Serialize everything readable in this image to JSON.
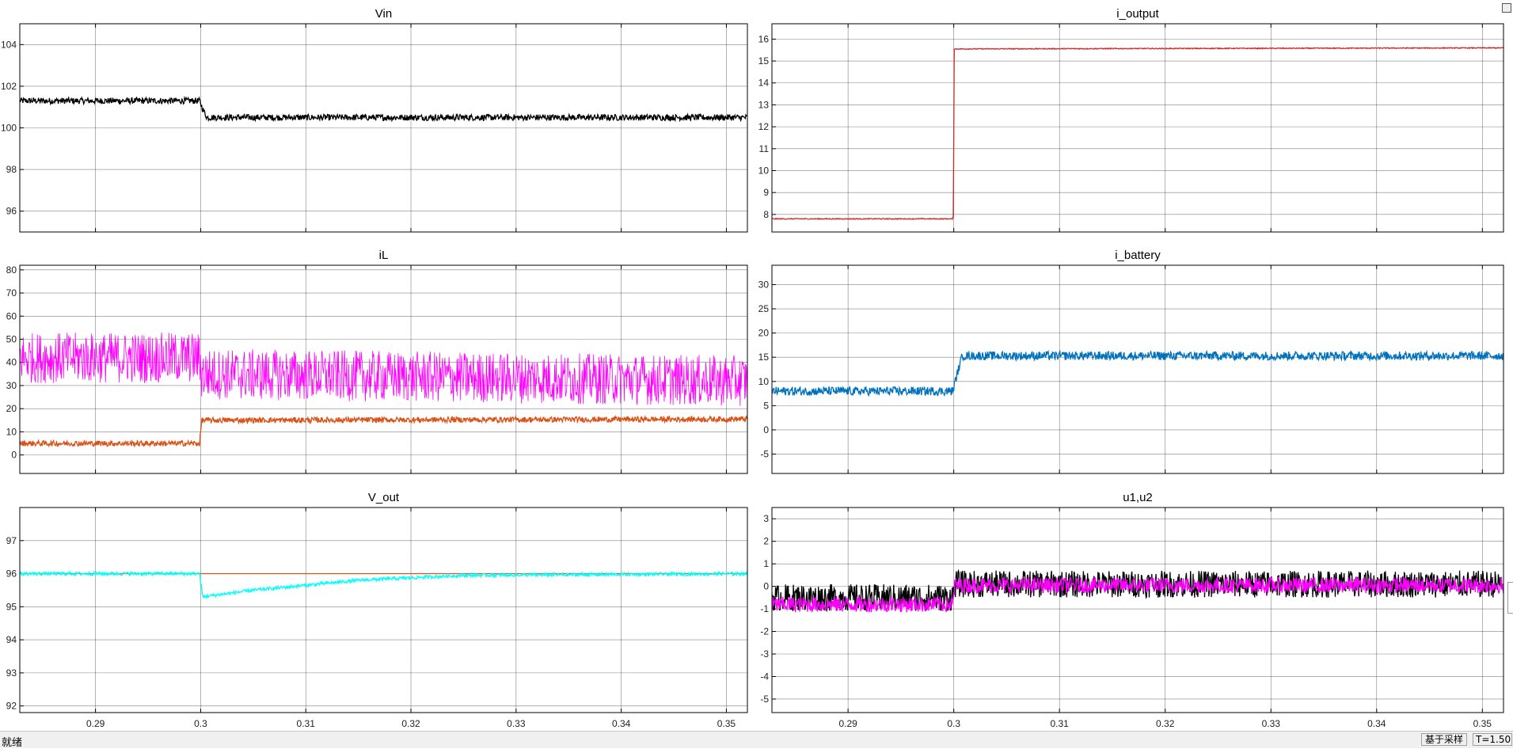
{
  "window": {
    "mode_label": "基于采样",
    "time_label": "T=1.500",
    "status": "就绪"
  },
  "colors": {
    "vin": "#000000",
    "i_output": "#d62728",
    "il_main": "#ff00ff",
    "il_ref": "#d95319",
    "i_battery": "#0072bd",
    "v_out": "#00ffff",
    "v_ref": "#d95319",
    "u1": "#000000",
    "u2": "#ff00ff",
    "grid": "#1a1a1a"
  },
  "chart_data": [
    {
      "type": "line",
      "title": "Vin",
      "xlim": [
        0.2828,
        0.352
      ],
      "ylim": [
        95,
        105
      ],
      "xticks": [
        "0.29",
        "0.3",
        "0.31",
        "0.32",
        "0.33",
        "0.34",
        "0.35"
      ],
      "yticks": [
        "96",
        "98",
        "100",
        "102",
        "104"
      ],
      "series": [
        {
          "color_key": "vin",
          "x": [
            0.2828,
            0.2999,
            0.3002,
            0.3006,
            0.352
          ],
          "y": [
            101.3,
            101.3,
            100.9,
            100.5,
            100.5
          ],
          "noise": 0.15
        }
      ]
    },
    {
      "type": "line",
      "title": "i_output",
      "xlim": [
        0.2828,
        0.352
      ],
      "ylim": [
        7.2,
        16.7
      ],
      "xticks": [
        "0.29",
        "0.3",
        "0.31",
        "0.32",
        "0.33",
        "0.34",
        "0.35"
      ],
      "yticks": [
        "8",
        "9",
        "10",
        "11",
        "12",
        "13",
        "14",
        "15",
        "16"
      ],
      "series": [
        {
          "color_key": "i_output",
          "x": [
            0.2828,
            0.29995,
            0.30005,
            0.352
          ],
          "y": [
            7.8,
            7.8,
            15.55,
            15.6
          ],
          "noise": 0.02
        }
      ]
    },
    {
      "type": "line",
      "title": "iL",
      "xlim": [
        0.2828,
        0.352
      ],
      "ylim": [
        -8,
        82
      ],
      "xticks": [
        "0.29",
        "0.3",
        "0.31",
        "0.32",
        "0.33",
        "0.34",
        "0.35"
      ],
      "yticks": [
        "0",
        "10",
        "20",
        "30",
        "40",
        "50",
        "60",
        "70",
        "80"
      ],
      "series": [
        {
          "color_key": "il_main",
          "x": [
            0.2828,
            0.2999,
            0.3001,
            0.352
          ],
          "y": [
            42,
            42,
            35,
            32
          ],
          "noise": 11
        },
        {
          "color_key": "il_ref",
          "x": [
            0.2828,
            0.2999,
            0.3001,
            0.352
          ],
          "y": [
            5,
            5,
            15,
            15.5
          ],
          "noise": 1.2
        }
      ]
    },
    {
      "type": "line",
      "title": "i_battery",
      "xlim": [
        0.2828,
        0.352
      ],
      "ylim": [
        -9,
        34
      ],
      "xticks": [
        "0.29",
        "0.3",
        "0.31",
        "0.32",
        "0.33",
        "0.34",
        "0.35"
      ],
      "yticks": [
        "-5",
        "0",
        "5",
        "10",
        "15",
        "20",
        "25",
        "30"
      ],
      "series": [
        {
          "color_key": "i_battery",
          "x": [
            0.2828,
            0.2999,
            0.3005,
            0.3008,
            0.352
          ],
          "y": [
            8,
            8,
            13,
            15.3,
            15.3
          ],
          "noise": 0.9
        }
      ]
    },
    {
      "type": "line",
      "title": "V_out",
      "xlim": [
        0.2828,
        0.352
      ],
      "ylim": [
        91.8,
        98
      ],
      "xticks": [
        "0.29",
        "0.3",
        "0.31",
        "0.32",
        "0.33",
        "0.34",
        "0.35"
      ],
      "yticks": [
        "92",
        "93",
        "94",
        "95",
        "96",
        "97"
      ],
      "series": [
        {
          "color_key": "v_ref",
          "x": [
            0.2828,
            0.352
          ],
          "y": [
            96,
            96
          ],
          "noise": 0
        },
        {
          "color_key": "v_out",
          "x": [
            0.2828,
            0.2999,
            0.3002,
            0.305,
            0.315,
            0.325,
            0.352
          ],
          "y": [
            96,
            96,
            95.3,
            95.5,
            95.8,
            95.95,
            96
          ],
          "noise": 0.05
        }
      ]
    },
    {
      "type": "line",
      "title": "u1,u2",
      "xlim": [
        0.2828,
        0.352
      ],
      "ylim": [
        -5.6,
        3.5
      ],
      "xticks": [
        "0.29",
        "0.3",
        "0.31",
        "0.32",
        "0.33",
        "0.34",
        "0.35"
      ],
      "yticks": [
        "-5",
        "-4",
        "-3",
        "-2",
        "-1",
        "0",
        "1",
        "2",
        "3"
      ],
      "series": [
        {
          "color_key": "u1",
          "x": [
            0.2828,
            0.2999,
            0.3001,
            0.352
          ],
          "y": [
            -0.5,
            -0.5,
            0.1,
            0.1
          ],
          "noise": 0.6
        },
        {
          "color_key": "u2",
          "x": [
            0.2828,
            0.2999,
            0.3001,
            0.352
          ],
          "y": [
            -0.8,
            -0.8,
            0.05,
            0.05
          ],
          "noise": 0.35
        }
      ]
    }
  ]
}
